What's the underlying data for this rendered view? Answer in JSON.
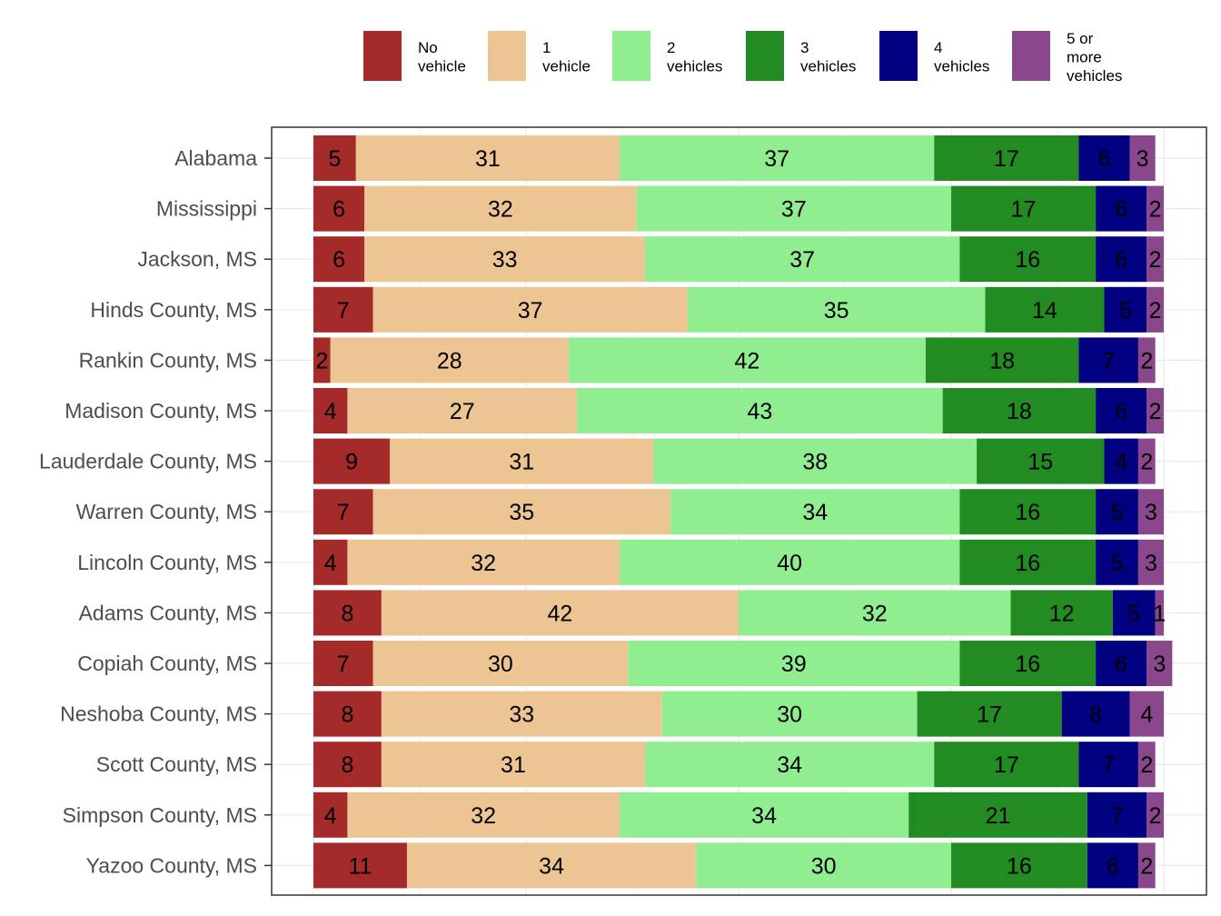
{
  "chart_data": {
    "type": "bar",
    "orientation": "horizontal",
    "stacked": true,
    "percent_stacked": true,
    "title": "",
    "xlabel": "",
    "ylabel": "",
    "xlim": [
      0,
      100
    ],
    "grid": true,
    "legend_position": "top",
    "categories": [
      "Alabama",
      "Mississippi",
      "Jackson, MS",
      "Hinds County, MS",
      "Rankin County, MS",
      "Madison County, MS",
      "Lauderdale County, MS",
      "Warren County, MS",
      "Lincoln County, MS",
      "Adams County, MS",
      "Copiah County, MS",
      "Neshoba County, MS",
      "Scott County, MS",
      "Simpson County, MS",
      "Yazoo County, MS"
    ],
    "series": [
      {
        "name": "No vehicle",
        "legend_lines": [
          "No",
          "vehicle"
        ],
        "color": "#a52a2a",
        "values": [
          5,
          6,
          6,
          7,
          2,
          4,
          9,
          7,
          4,
          8,
          7,
          8,
          8,
          4,
          11
        ]
      },
      {
        "name": "1 vehicle",
        "legend_lines": [
          "1",
          "vehicle"
        ],
        "color": "#edc592",
        "values": [
          31,
          32,
          33,
          37,
          28,
          27,
          31,
          35,
          32,
          42,
          30,
          33,
          31,
          32,
          34
        ]
      },
      {
        "name": "2 vehicles",
        "legend_lines": [
          "2",
          "vehicles"
        ],
        "color": "#90ee90",
        "values": [
          37,
          37,
          37,
          35,
          42,
          43,
          38,
          34,
          40,
          32,
          39,
          30,
          34,
          34,
          30
        ]
      },
      {
        "name": "3 vehicles",
        "legend_lines": [
          "3",
          "vehicles"
        ],
        "color": "#228b22",
        "values": [
          17,
          17,
          16,
          14,
          18,
          18,
          15,
          16,
          16,
          12,
          16,
          17,
          17,
          21,
          16
        ]
      },
      {
        "name": "4 vehicles",
        "legend_lines": [
          "4",
          "vehicles"
        ],
        "color": "#000080",
        "values": [
          6,
          6,
          6,
          5,
          7,
          6,
          4,
          5,
          5,
          5,
          6,
          8,
          7,
          7,
          6
        ]
      },
      {
        "name": "5 or more vehicles",
        "legend_lines": [
          "5 or",
          "more",
          "vehicles"
        ],
        "color": "#8b478b",
        "values": [
          3,
          2,
          2,
          2,
          2,
          2,
          2,
          3,
          3,
          1,
          3,
          4,
          2,
          2,
          2
        ]
      }
    ]
  }
}
